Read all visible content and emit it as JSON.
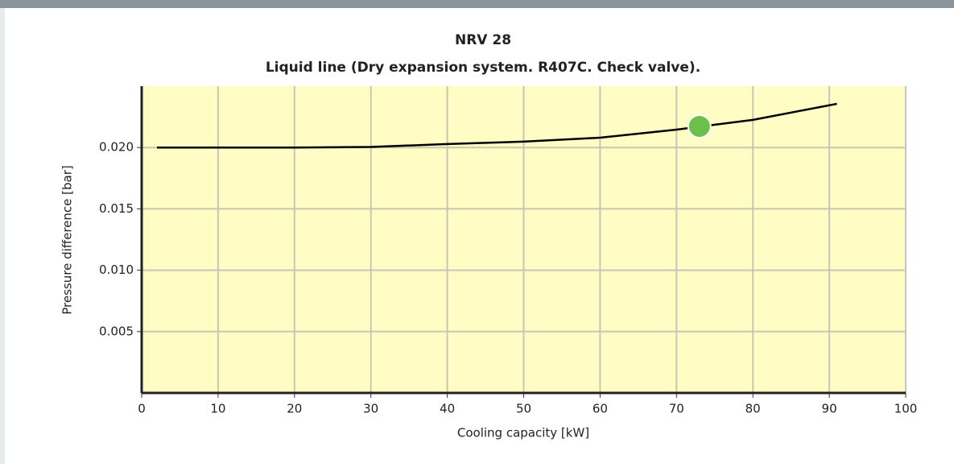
{
  "chart_data": {
    "type": "line",
    "title": "NRV 28",
    "subtitle": "Liquid line (Dry expansion system. R407C. Check valve).",
    "x_label": "Cooling capacity [kW]",
    "y_label": "Pressure difference [bar]",
    "x": [
      2,
      10,
      20,
      30,
      40,
      50,
      60,
      70,
      80,
      91
    ],
    "series": [
      {
        "color": "#000000",
        "values": [
          0.02,
          0.02,
          0.02,
          0.02005,
          0.02028,
          0.02048,
          0.0208,
          0.02146,
          0.02225,
          0.02356
        ]
      }
    ],
    "point": {
      "x": 73,
      "y": 0.02172,
      "color": "#6cc04a"
    },
    "xlim": [
      0,
      100
    ],
    "xticks": [
      0,
      10,
      20,
      30,
      40,
      50,
      60,
      70,
      80,
      90,
      100
    ],
    "ylim": [
      0,
      0.025
    ],
    "yticks": [
      {
        "value": 0.005,
        "label": "0.005"
      },
      {
        "value": 0.01,
        "label": "0.010"
      },
      {
        "value": 0.015,
        "label": "0.015"
      },
      {
        "value": 0.02,
        "label": "0.020"
      }
    ],
    "grid": true,
    "plot_background": "#fffcc4"
  }
}
